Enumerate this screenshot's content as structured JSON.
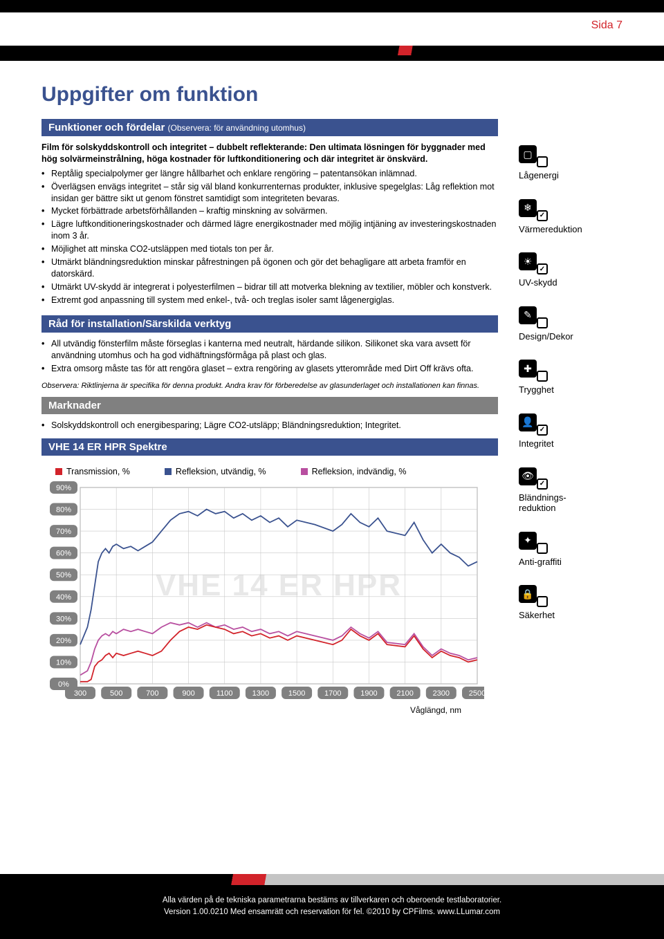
{
  "page_number": "Sida 7",
  "title": "Uppgifter om funktion",
  "sections": {
    "funktioner": {
      "header": "Funktioner och fördelar",
      "header_sub": "(Observera: för användning utomhus)",
      "intro": "Film för solskyddskontroll och integritet – dubbelt reflekterande: Den ultimata lösningen för byggnader med hög solvärmeinstrålning, höga kostnader för luftkonditionering och där integritet är önskvärd.",
      "bullets": [
        "Reptålig specialpolymer ger längre hållbarhet och enklare rengöring – patentansökan inlämnad.",
        "Överlägsen envägs integritet – står sig väl bland konkurrenternas produkter,  inklusive spegelglas: Låg reflektion mot insidan ger bättre sikt ut genom fönstret samtidigt som integriteten bevaras.",
        "Mycket förbättrade arbetsförhållanden – kraftig minskning av solvärmen.",
        "Lägre luftkonditioneringskostnader och därmed lägre energikostnader med möjlig intjäning av investeringskostnaden inom 3 år.",
        "Möjlighet att minska CO2-utsläppen med tiotals ton per år.",
        "Utmärkt bländningsreduktion minskar påfrestningen på ögonen och gör det  behagligare att arbeta framför en datorskärd.",
        "Utmärkt UV-skydd är integrerat i polyesterfilmen – bidrar till att motverka  blekning av textilier, möbler och konstverk.",
        "Extremt god anpassning till system med enkel-, två- och treglas isoler samt lågenergiglas."
      ]
    },
    "rad": {
      "header": "Råd för installation/Särskilda verktyg",
      "bullets": [
        "All utvändig fönsterfilm måste förseglas i kanterna med neutralt, härdande  silikon. Silikonet ska vara avsett för användning utomhus och ha god vidhäftningsförmåga på plast och glas.",
        "Extra omsorg måste tas för att rengöra glaset – extra rengöring av glasets ytterområde med Dirt Off krävs ofta."
      ],
      "note": "Observera: Riktlinjerna är specifika för denna produkt. Andra krav för förberedelse av glasunderlaget och installationen kan finnas."
    },
    "marknader": {
      "header": "Marknader",
      "bullets": [
        "Solskyddskontroll och energibesparing; Lägre CO2-utsläpp; Bländningsreduktion; Integritet."
      ]
    },
    "chart": {
      "header": "VHE 14 ER HPR Spektre",
      "legend": [
        {
          "label": "Transmission, %",
          "color": "#d2232a"
        },
        {
          "label": "Refleksion, utvändig, %",
          "color": "#3a528f"
        },
        {
          "label": "Refleksion, indvändig, %",
          "color": "#b84fa0"
        }
      ],
      "watermark": "VHE 14 ER HPR",
      "xlabel": "Våglängd, nm",
      "x_ticks": [
        "300",
        "500",
        "700",
        "900",
        "1100",
        "1300",
        "1500",
        "1700",
        "1900",
        "2100",
        "2300",
        "2500"
      ],
      "y_ticks": [
        "0%",
        "10%",
        "20%",
        "30%",
        "40%",
        "50%",
        "60%",
        "70%",
        "80%",
        "90%"
      ],
      "xlim": [
        300,
        2500
      ],
      "ylim": [
        0,
        90
      ],
      "grid_color": "#c8c8c8",
      "background": "#ffffff",
      "series": {
        "transmission": {
          "color": "#d2232a",
          "data": [
            [
              300,
              1
            ],
            [
              340,
              1
            ],
            [
              360,
              2
            ],
            [
              380,
              8
            ],
            [
              400,
              10
            ],
            [
              420,
              11
            ],
            [
              440,
              13
            ],
            [
              460,
              14
            ],
            [
              480,
              12
            ],
            [
              500,
              14
            ],
            [
              540,
              13
            ],
            [
              580,
              14
            ],
            [
              620,
              15
            ],
            [
              660,
              14
            ],
            [
              700,
              13
            ],
            [
              750,
              15
            ],
            [
              800,
              20
            ],
            [
              850,
              24
            ],
            [
              900,
              26
            ],
            [
              950,
              25
            ],
            [
              1000,
              27
            ],
            [
              1050,
              26
            ],
            [
              1100,
              25
            ],
            [
              1150,
              23
            ],
            [
              1200,
              24
            ],
            [
              1250,
              22
            ],
            [
              1300,
              23
            ],
            [
              1350,
              21
            ],
            [
              1400,
              22
            ],
            [
              1450,
              20
            ],
            [
              1500,
              22
            ],
            [
              1600,
              20
            ],
            [
              1700,
              18
            ],
            [
              1750,
              20
            ],
            [
              1800,
              25
            ],
            [
              1850,
              22
            ],
            [
              1900,
              20
            ],
            [
              1950,
              23
            ],
            [
              2000,
              18
            ],
            [
              2100,
              17
            ],
            [
              2150,
              22
            ],
            [
              2200,
              16
            ],
            [
              2250,
              12
            ],
            [
              2300,
              15
            ],
            [
              2350,
              13
            ],
            [
              2400,
              12
            ],
            [
              2450,
              10
            ],
            [
              2500,
              11
            ]
          ]
        },
        "refl_out": {
          "color": "#3a528f",
          "data": [
            [
              300,
              18
            ],
            [
              340,
              26
            ],
            [
              360,
              34
            ],
            [
              380,
              45
            ],
            [
              400,
              56
            ],
            [
              420,
              60
            ],
            [
              440,
              62
            ],
            [
              460,
              60
            ],
            [
              480,
              63
            ],
            [
              500,
              64
            ],
            [
              540,
              62
            ],
            [
              580,
              63
            ],
            [
              620,
              61
            ],
            [
              660,
              63
            ],
            [
              700,
              65
            ],
            [
              750,
              70
            ],
            [
              800,
              75
            ],
            [
              850,
              78
            ],
            [
              900,
              79
            ],
            [
              950,
              77
            ],
            [
              1000,
              80
            ],
            [
              1050,
              78
            ],
            [
              1100,
              79
            ],
            [
              1150,
              76
            ],
            [
              1200,
              78
            ],
            [
              1250,
              75
            ],
            [
              1300,
              77
            ],
            [
              1350,
              74
            ],
            [
              1400,
              76
            ],
            [
              1450,
              72
            ],
            [
              1500,
              75
            ],
            [
              1600,
              73
            ],
            [
              1700,
              70
            ],
            [
              1750,
              73
            ],
            [
              1800,
              78
            ],
            [
              1850,
              74
            ],
            [
              1900,
              72
            ],
            [
              1950,
              76
            ],
            [
              2000,
              70
            ],
            [
              2100,
              68
            ],
            [
              2150,
              74
            ],
            [
              2200,
              66
            ],
            [
              2250,
              60
            ],
            [
              2300,
              64
            ],
            [
              2350,
              60
            ],
            [
              2400,
              58
            ],
            [
              2450,
              54
            ],
            [
              2500,
              56
            ]
          ]
        },
        "refl_in": {
          "color": "#b84fa0",
          "data": [
            [
              300,
              4
            ],
            [
              340,
              6
            ],
            [
              360,
              10
            ],
            [
              380,
              16
            ],
            [
              400,
              20
            ],
            [
              420,
              22
            ],
            [
              440,
              23
            ],
            [
              460,
              22
            ],
            [
              480,
              24
            ],
            [
              500,
              23
            ],
            [
              540,
              25
            ],
            [
              580,
              24
            ],
            [
              620,
              25
            ],
            [
              660,
              24
            ],
            [
              700,
              23
            ],
            [
              750,
              26
            ],
            [
              800,
              28
            ],
            [
              850,
              27
            ],
            [
              900,
              28
            ],
            [
              950,
              26
            ],
            [
              1000,
              28
            ],
            [
              1050,
              26
            ],
            [
              1100,
              27
            ],
            [
              1150,
              25
            ],
            [
              1200,
              26
            ],
            [
              1250,
              24
            ],
            [
              1300,
              25
            ],
            [
              1350,
              23
            ],
            [
              1400,
              24
            ],
            [
              1450,
              22
            ],
            [
              1500,
              24
            ],
            [
              1600,
              22
            ],
            [
              1700,
              20
            ],
            [
              1750,
              22
            ],
            [
              1800,
              26
            ],
            [
              1850,
              23
            ],
            [
              1900,
              21
            ],
            [
              1950,
              24
            ],
            [
              2000,
              19
            ],
            [
              2100,
              18
            ],
            [
              2150,
              23
            ],
            [
              2200,
              17
            ],
            [
              2250,
              13
            ],
            [
              2300,
              16
            ],
            [
              2350,
              14
            ],
            [
              2400,
              13
            ],
            [
              2450,
              11
            ],
            [
              2500,
              12
            ]
          ]
        }
      }
    }
  },
  "features": [
    {
      "name": "lagenergi",
      "label": "Lågenergi",
      "glyph": "▢",
      "badge": ""
    },
    {
      "name": "varmereduktion",
      "label": "Värmereduktion",
      "glyph": "❄",
      "badge": "✓"
    },
    {
      "name": "uvskydd",
      "label": "UV-skydd",
      "glyph": "☀",
      "badge": "✓"
    },
    {
      "name": "design",
      "label": "Design/Dekor",
      "glyph": "✎",
      "badge": ""
    },
    {
      "name": "trygghet",
      "label": "Trygghet",
      "glyph": "✚",
      "badge": ""
    },
    {
      "name": "integritet",
      "label": "Integritet",
      "glyph": "👤",
      "badge": "✓"
    },
    {
      "name": "blandning",
      "label": "Bländnings-\nreduktion",
      "glyph": "👁",
      "badge": "✓"
    },
    {
      "name": "antigraffiti",
      "label": "Anti-graffiti",
      "glyph": "✦",
      "badge": ""
    },
    {
      "name": "sakerhet",
      "label": "Säkerhet",
      "glyph": "🔒",
      "badge": ""
    }
  ],
  "footer": {
    "line1": "Alla värden på de tekniska parametrarna bestäms av tillverkaren och oberoende testlaboratorier.",
    "line2": "Version 1.00.0210 Med ensamrätt och reservation för fel. ©2010 by CPFilms. www.LLumar.com"
  }
}
